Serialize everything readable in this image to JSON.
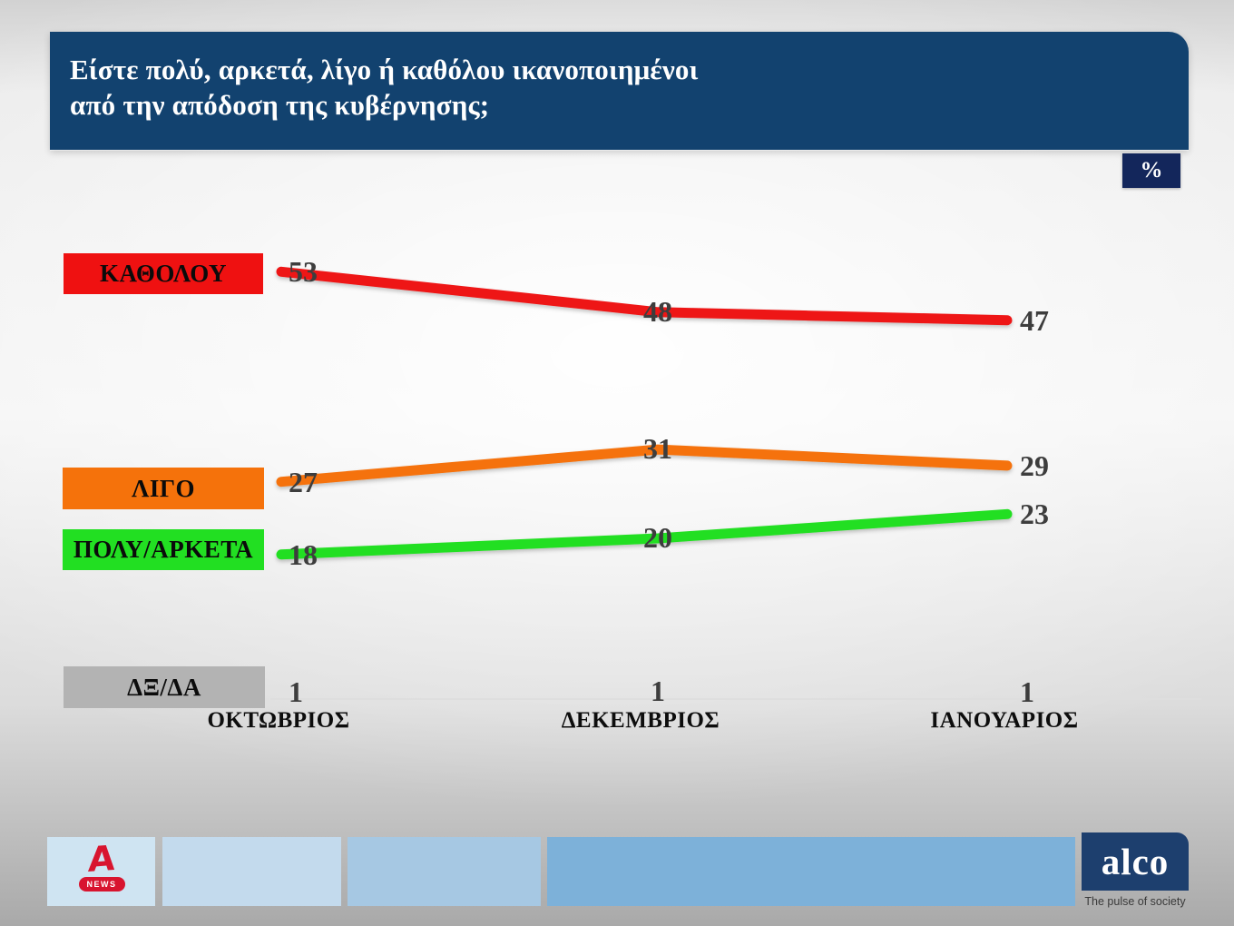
{
  "title": {
    "line1": "Είστε πολύ, αρκετά, λίγο ή καθόλου ικανοποιημένοι",
    "line2": "από την απόδοση της κυβέρνησης;"
  },
  "unit_badge": "%",
  "colors": {
    "header_bg": "#12426f",
    "badge_bg": "#13265b",
    "value_label": "#3d3d3d",
    "axis_line": "#dedede"
  },
  "chart_data": {
    "type": "line",
    "categories": [
      "ΟΚΤΩΒΡΙΟΣ",
      "ΔΕΚΕΜΒΡΙΟΣ",
      "ΙΑΝΟΥΑΡΙΟΣ"
    ],
    "series": [
      {
        "name": "ΚΑΘΟΛΟΥ",
        "values": [
          53,
          48,
          47
        ],
        "line_color": "#ee1515",
        "box_color": "#ef1111"
      },
      {
        "name": "ΛΙΓΟ",
        "values": [
          27,
          31,
          29
        ],
        "line_color": "#f5720b",
        "box_color": "#f5720b"
      },
      {
        "name": "ΠΟΛΥ/ΑΡΚΕΤΑ",
        "values": [
          18,
          20,
          23
        ],
        "line_color": "#22df22",
        "box_color": "#22df22"
      },
      {
        "name": "ΔΞ/ΔΑ",
        "values": [
          1,
          1,
          1
        ],
        "line_color": "#c3c3c3",
        "box_color": "#b3b3b3"
      }
    ],
    "legend_position": "left",
    "grid": false,
    "value_labels": true,
    "unit": "%"
  },
  "footer": {
    "channel": {
      "letter": "A",
      "pill": "NEWS"
    },
    "alco": {
      "name": "alco",
      "tagline": "The pulse of society"
    }
  }
}
